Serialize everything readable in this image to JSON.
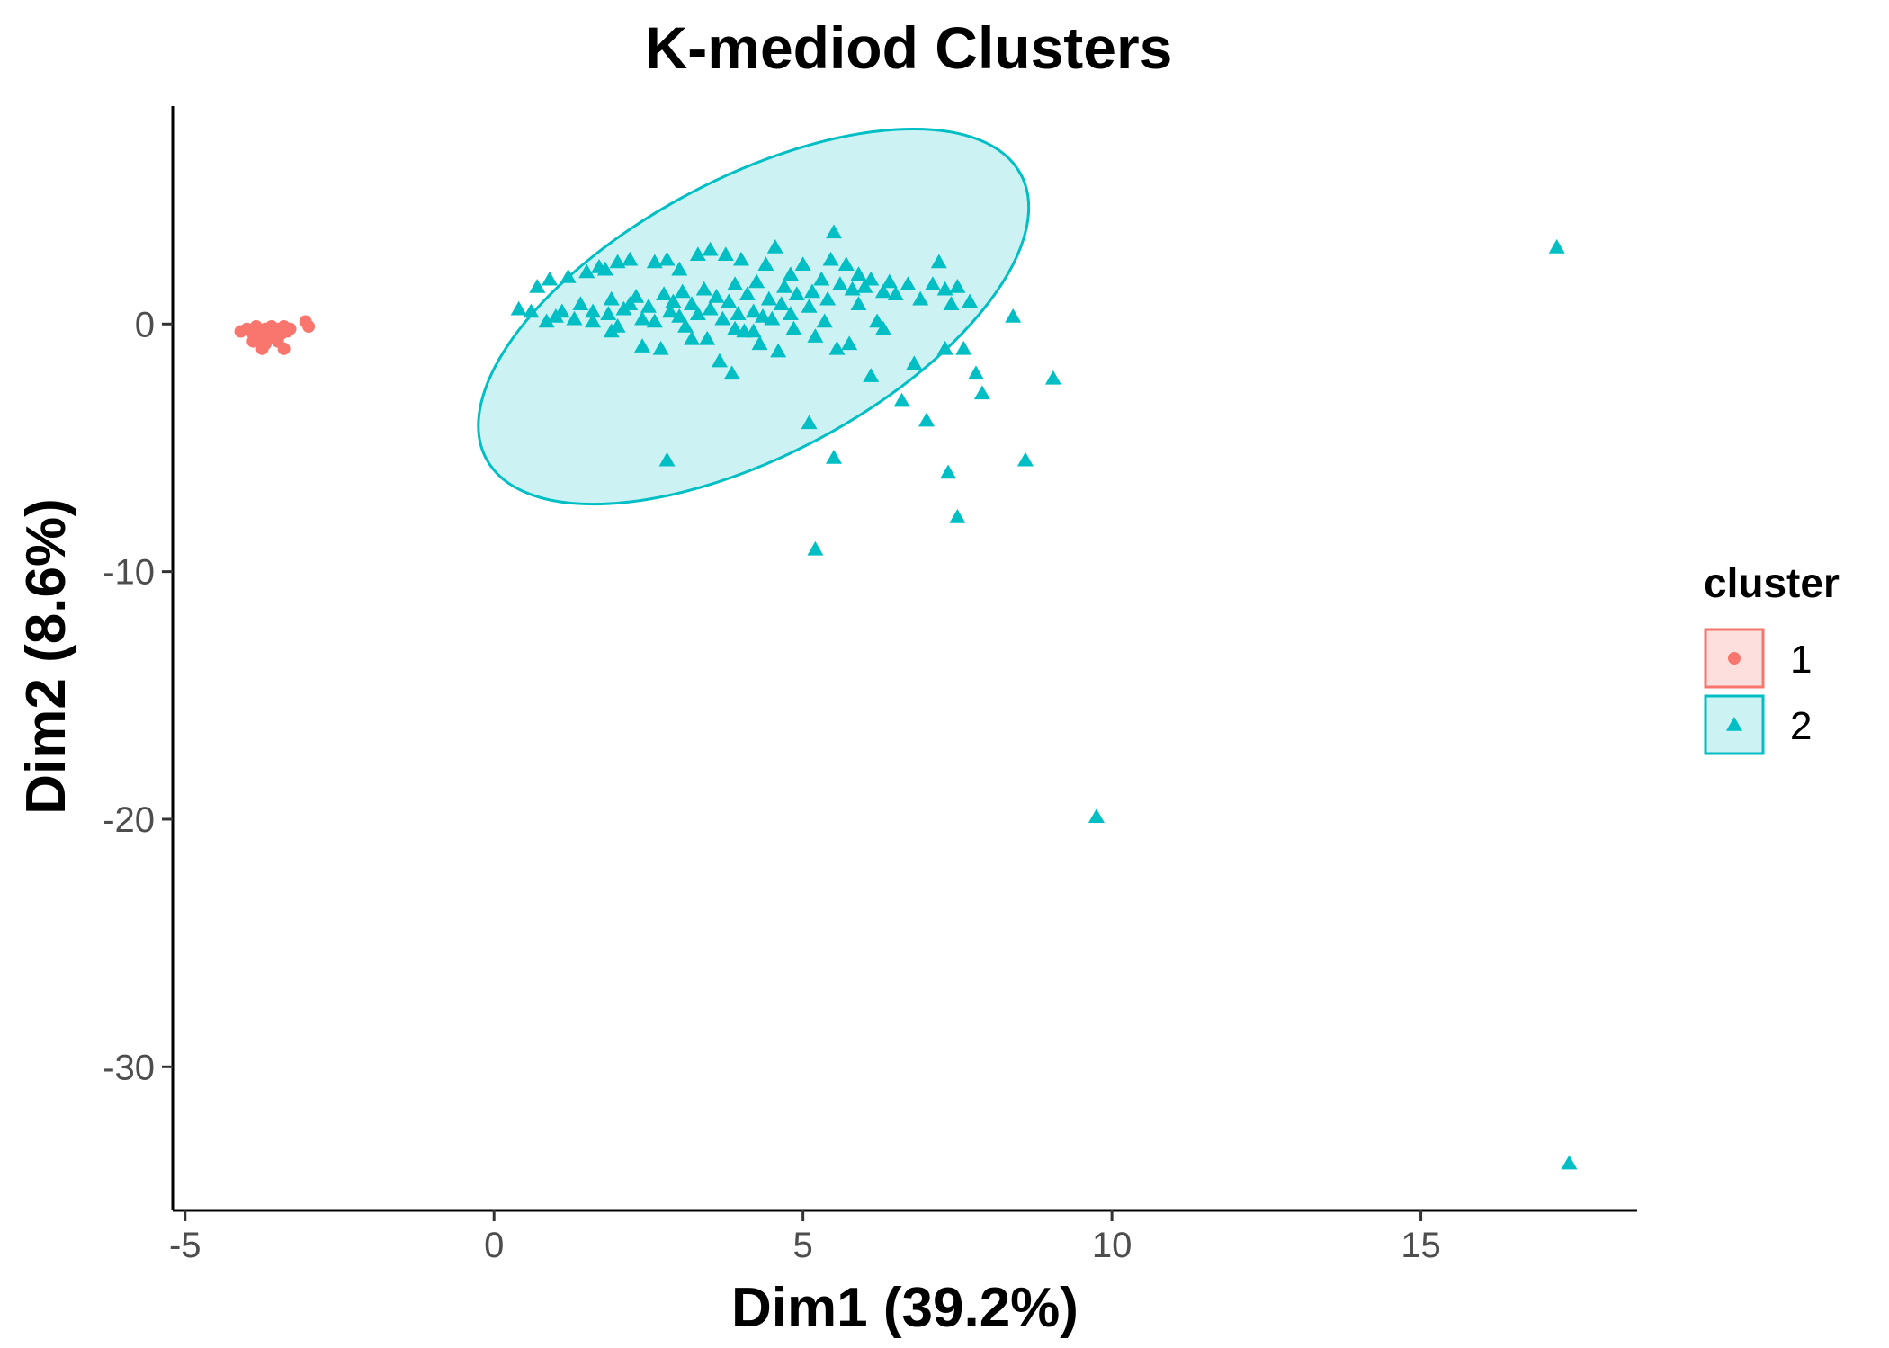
{
  "chart_data": {
    "type": "scatter",
    "title": "K-mediod Clusters",
    "xlabel": "Dim1 (39.2%)",
    "ylabel": "Dim2 (8.6%)",
    "xlim": [
      -5.2,
      18.5
    ],
    "ylim": [
      -35.8,
      8.8
    ],
    "x_ticks": [
      -5,
      0,
      5,
      10,
      15
    ],
    "y_ticks": [
      0,
      -10,
      -20,
      -30
    ],
    "grid": false,
    "legend": {
      "title": "cluster",
      "position": "right",
      "entries": [
        {
          "label": "1",
          "marker": "circle",
          "color": "#F8766D",
          "fill": "#FDE0DD"
        },
        {
          "label": "2",
          "marker": "triangle",
          "color": "#00BFC4",
          "fill": "#CCF2F3"
        }
      ]
    },
    "ellipses": [
      {
        "cluster": "2",
        "cx": 4.2,
        "cy": 0.3,
        "rx": 4.9,
        "ry": 5.6,
        "rotation": -28,
        "color": "#00BFC4",
        "fill": "#00BFC4",
        "fill_opacity": 0.2
      }
    ],
    "series": [
      {
        "name": "1",
        "marker": "circle",
        "color": "#F8766D",
        "points": [
          [
            -4.1,
            -0.3
          ],
          [
            -4.0,
            -0.2
          ],
          [
            -3.9,
            -0.4
          ],
          [
            -3.85,
            -0.1
          ],
          [
            -3.8,
            -0.3
          ],
          [
            -3.75,
            -0.5
          ],
          [
            -3.7,
            -0.2
          ],
          [
            -3.65,
            -0.6
          ],
          [
            -3.6,
            -0.1
          ],
          [
            -3.55,
            -0.3
          ],
          [
            -3.5,
            -0.2
          ],
          [
            -3.45,
            -0.4
          ],
          [
            -3.4,
            -0.1
          ],
          [
            -3.35,
            -0.3
          ],
          [
            -3.9,
            -0.7
          ],
          [
            -3.7,
            -0.8
          ],
          [
            -3.75,
            -1.0
          ],
          [
            -3.4,
            -1.0
          ],
          [
            -3.05,
            0.1
          ],
          [
            -3.0,
            -0.1
          ],
          [
            -3.6,
            -0.5
          ],
          [
            -3.8,
            -0.6
          ],
          [
            -3.5,
            -0.7
          ],
          [
            -3.3,
            -0.2
          ]
        ]
      },
      {
        "name": "2",
        "marker": "triangle",
        "color": "#00BFC4",
        "points": [
          [
            0.4,
            0.6
          ],
          [
            0.6,
            0.5
          ],
          [
            0.7,
            1.5
          ],
          [
            0.9,
            1.8
          ],
          [
            0.85,
            0.1
          ],
          [
            1.0,
            0.3
          ],
          [
            1.1,
            0.5
          ],
          [
            1.2,
            1.9
          ],
          [
            1.3,
            0.2
          ],
          [
            1.4,
            0.8
          ],
          [
            1.5,
            2.1
          ],
          [
            1.6,
            0.1
          ],
          [
            1.6,
            0.5
          ],
          [
            1.7,
            2.3
          ],
          [
            1.8,
            2.2
          ],
          [
            1.85,
            0.4
          ],
          [
            1.9,
            -0.3
          ],
          [
            1.9,
            1.0
          ],
          [
            2.0,
            2.5
          ],
          [
            2.0,
            -0.1
          ],
          [
            2.1,
            0.6
          ],
          [
            2.2,
            2.6
          ],
          [
            2.3,
            1.1
          ],
          [
            2.4,
            0.2
          ],
          [
            2.4,
            -0.9
          ],
          [
            2.5,
            0.7
          ],
          [
            2.6,
            2.5
          ],
          [
            2.6,
            0.1
          ],
          [
            2.7,
            -1.0
          ],
          [
            2.75,
            1.2
          ],
          [
            2.8,
            2.6
          ],
          [
            2.85,
            0.5
          ],
          [
            2.9,
            0.9
          ],
          [
            3.0,
            0.3
          ],
          [
            3.05,
            1.3
          ],
          [
            3.1,
            -0.1
          ],
          [
            3.2,
            0.8
          ],
          [
            3.3,
            2.8
          ],
          [
            3.3,
            0.4
          ],
          [
            3.4,
            1.4
          ],
          [
            3.45,
            -0.6
          ],
          [
            3.5,
            3.0
          ],
          [
            3.5,
            0.6
          ],
          [
            3.6,
            1.1
          ],
          [
            3.65,
            -1.5
          ],
          [
            3.7,
            0.2
          ],
          [
            3.75,
            2.8
          ],
          [
            3.8,
            0.9
          ],
          [
            3.85,
            -2.0
          ],
          [
            3.9,
            1.6
          ],
          [
            3.95,
            0.4
          ],
          [
            4.0,
            2.6
          ],
          [
            4.05,
            -0.3
          ],
          [
            4.1,
            1.2
          ],
          [
            4.2,
            0.5
          ],
          [
            4.25,
            1.7
          ],
          [
            4.3,
            -0.8
          ],
          [
            4.35,
            0.3
          ],
          [
            4.4,
            2.4
          ],
          [
            4.45,
            1.0
          ],
          [
            4.5,
            0.2
          ],
          [
            4.55,
            3.1
          ],
          [
            4.6,
            -1.1
          ],
          [
            4.65,
            0.8
          ],
          [
            4.7,
            1.5
          ],
          [
            4.8,
            0.4
          ],
          [
            4.85,
            -0.2
          ],
          [
            4.9,
            1.2
          ],
          [
            5.0,
            2.4
          ],
          [
            5.1,
            0.7
          ],
          [
            5.15,
            1.3
          ],
          [
            5.2,
            -0.5
          ],
          [
            5.3,
            1.8
          ],
          [
            5.35,
            0.1
          ],
          [
            5.4,
            1.0
          ],
          [
            5.45,
            2.6
          ],
          [
            5.5,
            3.7
          ],
          [
            5.55,
            -1.0
          ],
          [
            5.6,
            1.6
          ],
          [
            5.7,
            2.4
          ],
          [
            5.75,
            -0.8
          ],
          [
            5.8,
            1.4
          ],
          [
            5.9,
            2.0
          ],
          [
            6.0,
            1.5
          ],
          [
            6.1,
            -2.1
          ],
          [
            6.2,
            0.1
          ],
          [
            6.3,
            1.3
          ],
          [
            6.4,
            1.7
          ],
          [
            6.5,
            1.2
          ],
          [
            6.6,
            -3.1
          ],
          [
            6.7,
            1.6
          ],
          [
            6.8,
            -1.6
          ],
          [
            6.9,
            1.0
          ],
          [
            7.0,
            -3.9
          ],
          [
            7.1,
            1.6
          ],
          [
            7.2,
            2.5
          ],
          [
            7.3,
            1.4
          ],
          [
            7.4,
            0.8
          ],
          [
            7.5,
            1.5
          ],
          [
            7.6,
            -1.0
          ],
          [
            7.7,
            0.9
          ],
          [
            7.8,
            -2.0
          ],
          [
            7.9,
            -2.8
          ],
          [
            8.4,
            0.3
          ],
          [
            8.6,
            -5.5
          ],
          [
            9.05,
            -2.2
          ],
          [
            7.3,
            -1.0
          ],
          [
            7.35,
            -6.0
          ],
          [
            7.5,
            -7.8
          ],
          [
            5.5,
            -5.4
          ],
          [
            5.1,
            -4.0
          ],
          [
            5.2,
            -9.1
          ],
          [
            2.8,
            -5.5
          ],
          [
            9.75,
            -19.9
          ],
          [
            17.2,
            3.1
          ],
          [
            17.4,
            -33.9
          ],
          [
            2.2,
            0.8
          ],
          [
            3.0,
            2.2
          ],
          [
            3.2,
            -0.6
          ],
          [
            3.9,
            -0.2
          ],
          [
            4.2,
            -0.3
          ],
          [
            4.8,
            2.0
          ],
          [
            5.9,
            0.8
          ],
          [
            6.1,
            1.8
          ],
          [
            6.3,
            -0.2
          ]
        ]
      }
    ]
  }
}
